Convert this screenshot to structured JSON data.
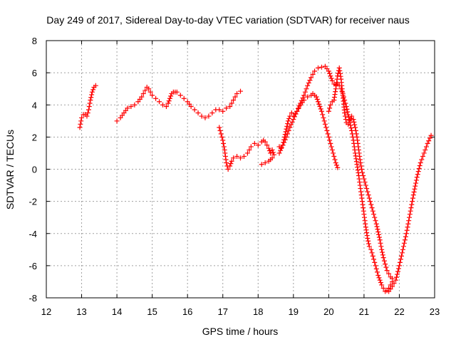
{
  "chart_data": {
    "type": "scatter",
    "title": "Day 249 of 2017, Sidereal Day-to-day VTEC variation (SDTVAR) for receiver naus",
    "xlabel": "GPS time / hours",
    "ylabel": "SDTVAR / TECUs",
    "xlim": [
      12,
      23
    ],
    "ylim": [
      -8,
      8
    ],
    "xticks": [
      12,
      13,
      14,
      15,
      16,
      17,
      18,
      19,
      20,
      21,
      22,
      23
    ],
    "yticks": [
      -8,
      -6,
      -4,
      -2,
      0,
      2,
      4,
      6,
      8
    ],
    "grid": true,
    "marker": "+",
    "series": [
      {
        "name": "segment-1",
        "color": "#ff0000",
        "x": [
          12.95,
          13.0,
          13.05,
          13.1,
          13.15,
          13.2,
          13.25,
          13.3,
          13.35,
          13.4
        ],
        "y": [
          2.6,
          3.2,
          3.4,
          3.4,
          3.3,
          3.7,
          4.3,
          4.8,
          5.1,
          5.2
        ]
      },
      {
        "name": "segment-2",
        "color": "#ff0000",
        "x": [
          14.0,
          14.1,
          14.2,
          14.3,
          14.4,
          14.5,
          14.6,
          14.7,
          14.8,
          14.85,
          14.9,
          14.95,
          15.0,
          15.1,
          15.2,
          15.3,
          15.4,
          15.45,
          15.5,
          15.55,
          15.6,
          15.65,
          15.7,
          15.8,
          15.9,
          16.0,
          16.1,
          16.2,
          16.3,
          16.4,
          16.5,
          16.6,
          16.7,
          16.8,
          16.9,
          17.0,
          17.1,
          17.2,
          17.3,
          17.4,
          17.5
        ],
        "y": [
          3.0,
          3.2,
          3.5,
          3.8,
          3.9,
          4.0,
          4.2,
          4.5,
          4.9,
          5.1,
          5.0,
          4.8,
          4.6,
          4.4,
          4.2,
          4.0,
          3.9,
          4.1,
          4.4,
          4.7,
          4.8,
          4.8,
          4.8,
          4.6,
          4.4,
          4.2,
          3.9,
          3.7,
          3.5,
          3.3,
          3.2,
          3.3,
          3.5,
          3.7,
          3.7,
          3.6,
          3.8,
          3.9,
          4.3,
          4.7,
          4.85
        ]
      },
      {
        "name": "segment-3",
        "color": "#ff0000",
        "x": [
          16.9,
          16.95,
          17.0,
          17.05,
          17.1,
          17.15,
          17.2,
          17.25,
          17.3,
          17.4,
          17.5,
          17.6,
          17.7,
          17.8,
          17.9,
          18.0,
          18.1,
          18.15,
          18.2,
          18.25,
          18.3,
          18.35,
          18.4,
          18.45,
          18.4,
          18.35,
          18.3,
          18.2,
          18.1
        ],
        "y": [
          2.6,
          2.2,
          1.8,
          1.2,
          0.4,
          0.0,
          0.2,
          0.5,
          0.7,
          0.8,
          0.7,
          0.8,
          1.0,
          1.4,
          1.6,
          1.5,
          1.7,
          1.8,
          1.7,
          1.5,
          1.3,
          1.0,
          1.2,
          0.9,
          0.7,
          0.6,
          0.5,
          0.4,
          0.3
        ]
      },
      {
        "name": "segment-4",
        "color": "#ff0000",
        "x": [
          18.6,
          18.65,
          18.7,
          18.75,
          18.8,
          18.85,
          18.9,
          18.95,
          19.0,
          19.1,
          19.2,
          19.3,
          19.4,
          19.5,
          19.55,
          19.6,
          19.65,
          19.7,
          19.75,
          19.8,
          19.85,
          19.9,
          19.95,
          20.0,
          20.05,
          20.1,
          20.15,
          20.2,
          20.25
        ],
        "y": [
          1.4,
          1.3,
          1.5,
          2.0,
          2.5,
          3.0,
          3.3,
          3.5,
          3.3,
          3.6,
          4.0,
          4.3,
          4.5,
          4.6,
          4.7,
          4.6,
          4.5,
          4.2,
          3.9,
          3.6,
          3.2,
          2.8,
          2.4,
          2.0,
          1.6,
          1.2,
          0.8,
          0.4,
          0.1
        ]
      },
      {
        "name": "segment-5",
        "color": "#ff0000",
        "x": [
          18.6,
          18.7,
          18.8,
          18.9,
          19.0,
          19.1,
          19.2,
          19.3,
          19.4,
          19.5,
          19.6,
          19.7,
          19.8,
          19.9,
          20.0,
          20.05,
          20.1,
          20.15,
          20.2,
          20.25,
          20.3,
          20.35,
          20.4,
          20.45,
          20.5,
          20.55,
          20.6,
          20.65,
          20.7,
          20.75,
          20.8,
          20.85,
          20.9,
          20.95,
          21.0,
          21.05,
          21.1,
          21.15,
          21.2,
          21.25,
          21.3,
          21.35,
          21.4,
          21.45,
          21.5,
          21.55,
          21.6,
          21.65,
          21.7,
          21.75,
          21.8
        ],
        "y": [
          1.0,
          1.5,
          2.0,
          2.6,
          3.1,
          3.6,
          4.1,
          4.6,
          5.2,
          5.7,
          6.1,
          6.3,
          6.35,
          6.4,
          6.1,
          5.8,
          5.5,
          5.3,
          5.25,
          5.3,
          5.2,
          5.0,
          4.7,
          4.3,
          3.9,
          3.4,
          2.9,
          2.4,
          1.8,
          1.0,
          0.3,
          -0.4,
          -1.2,
          -2.0,
          -2.8,
          -3.6,
          -4.3,
          -4.8,
          -5.0,
          -5.4,
          -5.8,
          -6.2,
          -6.6,
          -6.9,
          -7.2,
          -7.4,
          -7.6,
          -7.55,
          -7.4,
          -7.2,
          -7.0
        ]
      },
      {
        "name": "segment-6",
        "color": "#ff0000",
        "x": [
          20.0,
          20.05,
          20.1,
          20.15,
          20.2,
          20.25,
          20.3,
          20.35,
          20.4,
          20.45,
          20.5,
          20.55,
          20.6,
          20.65,
          20.7,
          20.75,
          20.8,
          20.85,
          20.9,
          20.95,
          21.0,
          21.05,
          21.1,
          21.15,
          21.2,
          21.25,
          21.3,
          21.35,
          21.4,
          21.45,
          21.5,
          21.55,
          21.6,
          21.65,
          21.7,
          21.75,
          21.8
        ],
        "y": [
          3.6,
          4.0,
          4.2,
          4.3,
          5.0,
          5.8,
          6.3,
          5.6,
          4.6,
          3.5,
          2.9,
          2.8,
          3.0,
          3.3,
          3.1,
          2.6,
          2.0,
          1.2,
          0.4,
          -0.2,
          -0.6,
          -1.0,
          -1.4,
          -1.8,
          -2.2,
          -2.6,
          -3.0,
          -3.4,
          -3.9,
          -4.4,
          -5.0,
          -5.5,
          -5.9,
          -6.3,
          -6.5,
          -6.7,
          -6.8
        ]
      },
      {
        "name": "segment-7",
        "color": "#ff0000",
        "x": [
          21.7,
          21.8,
          21.9,
          22.0,
          22.1,
          22.2,
          22.3,
          22.4,
          22.5,
          22.6,
          22.7,
          22.8,
          22.9
        ],
        "y": [
          -7.6,
          -7.3,
          -6.9,
          -6.0,
          -5.0,
          -4.0,
          -2.8,
          -1.6,
          -0.5,
          0.4,
          1.0,
          1.6,
          2.1
        ]
      }
    ]
  }
}
